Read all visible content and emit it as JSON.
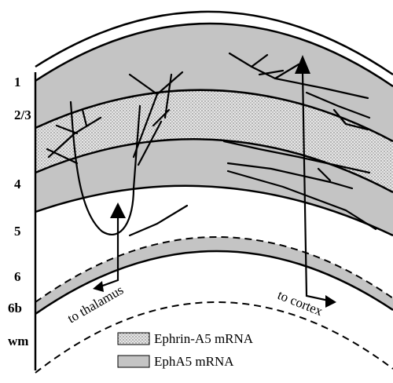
{
  "layers": [
    "1",
    "2/3",
    "4",
    "5",
    "6",
    "6b",
    "wm"
  ],
  "arrows": {
    "thalamus": "to thalamus",
    "cortex": "to cortex"
  },
  "legend": [
    "Ephrin-A5 mRNA",
    "EphA5  mRNA"
  ]
}
